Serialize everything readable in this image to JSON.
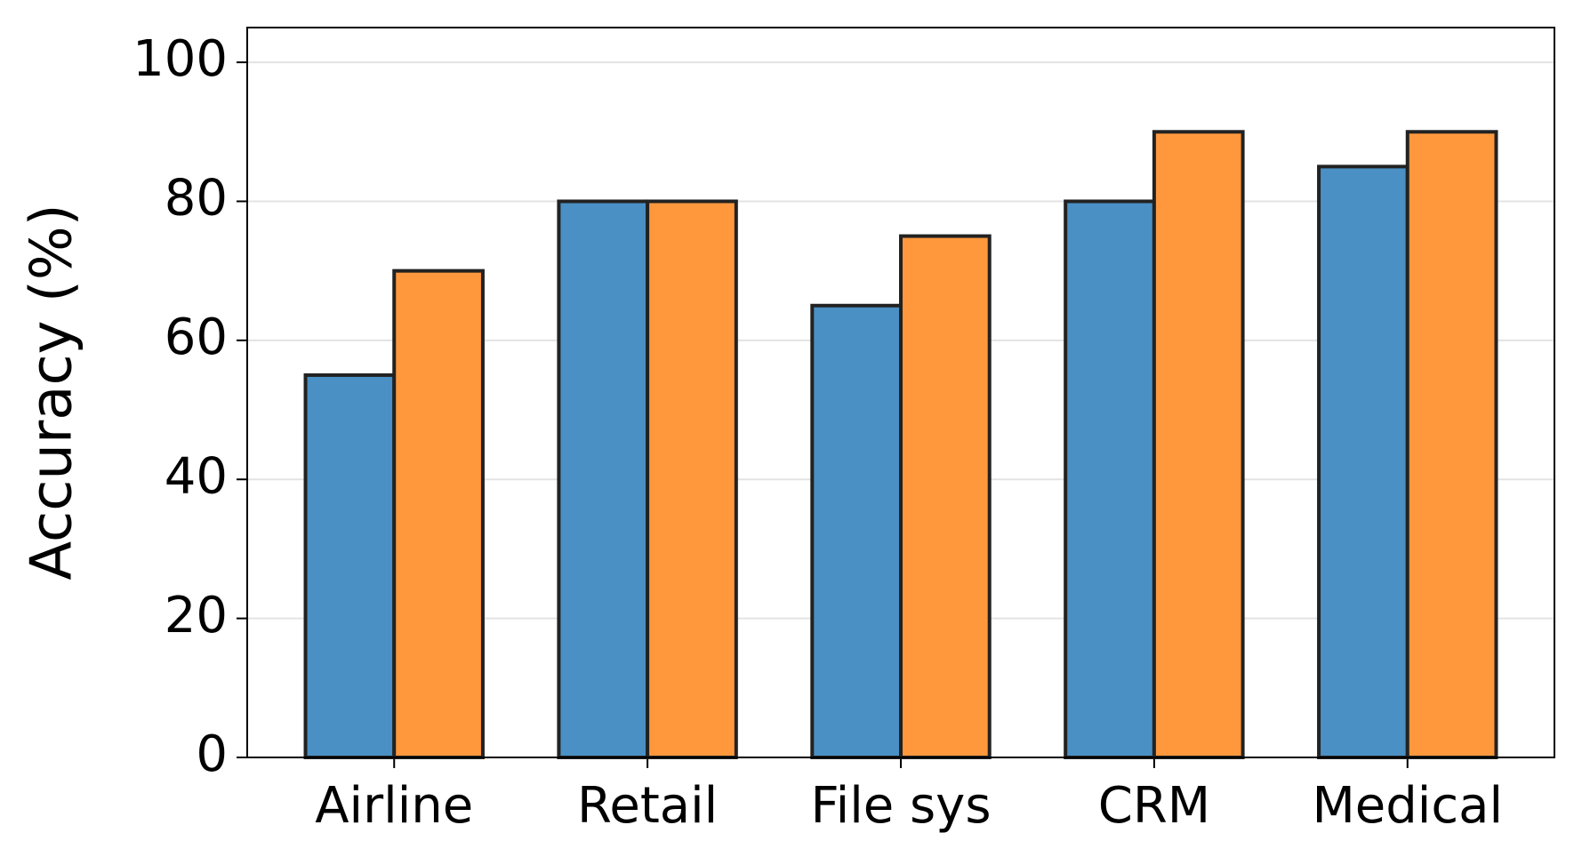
{
  "chart_data": {
    "type": "bar",
    "y_label": "Accuracy (%)",
    "categories": [
      "Airline",
      "Retail",
      "File sys",
      "CRM",
      "Medical"
    ],
    "series": [
      {
        "color": "#4a90c4",
        "values": [
          55,
          80,
          65,
          80,
          85
        ]
      },
      {
        "color": "#ff983d",
        "values": [
          70,
          80,
          75,
          90,
          90
        ]
      }
    ],
    "ylim": [
      0,
      105
    ],
    "yticks": [
      0,
      20,
      40,
      60,
      80,
      100
    ],
    "grid": true
  }
}
